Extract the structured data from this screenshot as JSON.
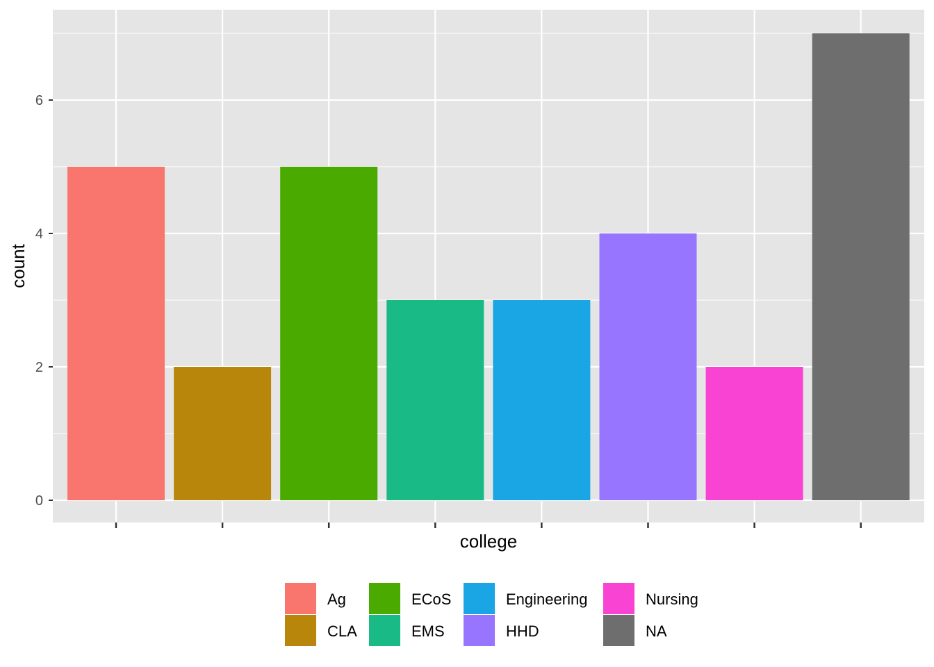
{
  "chart_data": {
    "type": "bar",
    "title": "",
    "xlabel": "college",
    "ylabel": "count",
    "categories": [
      "Ag",
      "CLA",
      "ECoS",
      "EMS",
      "Engineering",
      "HHD",
      "Nursing",
      "NA"
    ],
    "values": [
      5,
      2,
      5,
      3,
      3,
      4,
      2,
      7
    ],
    "colors": [
      "#F8766D",
      "#B8860B",
      "#4AAA00",
      "#1ABA87",
      "#1AA6E4",
      "#9875FF",
      "#F944D3",
      "#6E6E6E"
    ],
    "ylim": [
      0,
      7.35
    ],
    "yticks": [
      0,
      2,
      4,
      6
    ],
    "x_tick_labels_shown": false,
    "grid": true,
    "panel_background": "#E5E5E5",
    "legend": {
      "placement": "bottom",
      "title": "",
      "entries": [
        "Ag",
        "CLA",
        "ECoS",
        "EMS",
        "Engineering",
        "HHD",
        "Nursing",
        "NA"
      ]
    }
  }
}
